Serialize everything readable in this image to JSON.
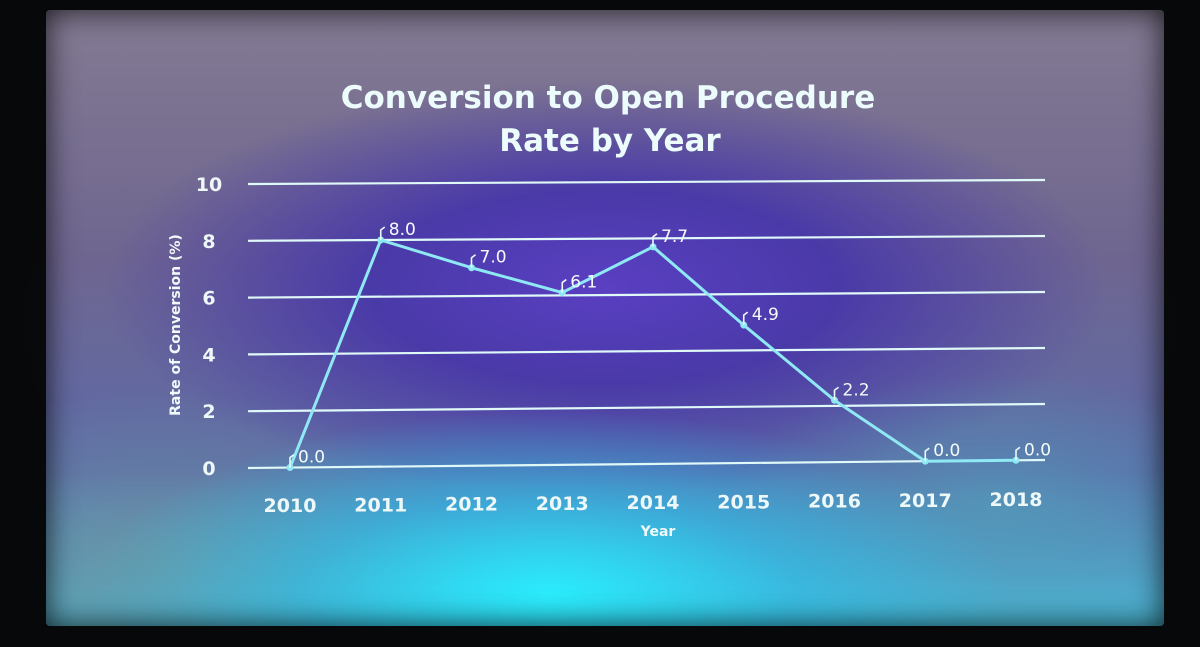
{
  "chart_data": {
    "type": "line",
    "title": "Conversion to Open Procedure",
    "subtitle": "Rate by Year",
    "xlabel": "Year",
    "ylabel": "Rate of Conversion (%)",
    "ylim": [
      0,
      10
    ],
    "yticks": [
      0,
      2,
      4,
      6,
      8,
      10
    ],
    "grid": true,
    "categories": [
      "2010",
      "2011",
      "2012",
      "2013",
      "2014",
      "2015",
      "2016",
      "2017",
      "2018"
    ],
    "series": [
      {
        "values": [
          0.0,
          8.0,
          7.0,
          6.1,
          7.7,
          4.9,
          2.2,
          0.0,
          0.0
        ],
        "labels": [
          "0.0",
          "8.0",
          "7.0",
          "6.1",
          "7.7",
          "4.9",
          "2.2",
          "0.0",
          "0.0"
        ],
        "color": "#8fe9f4"
      }
    ]
  }
}
